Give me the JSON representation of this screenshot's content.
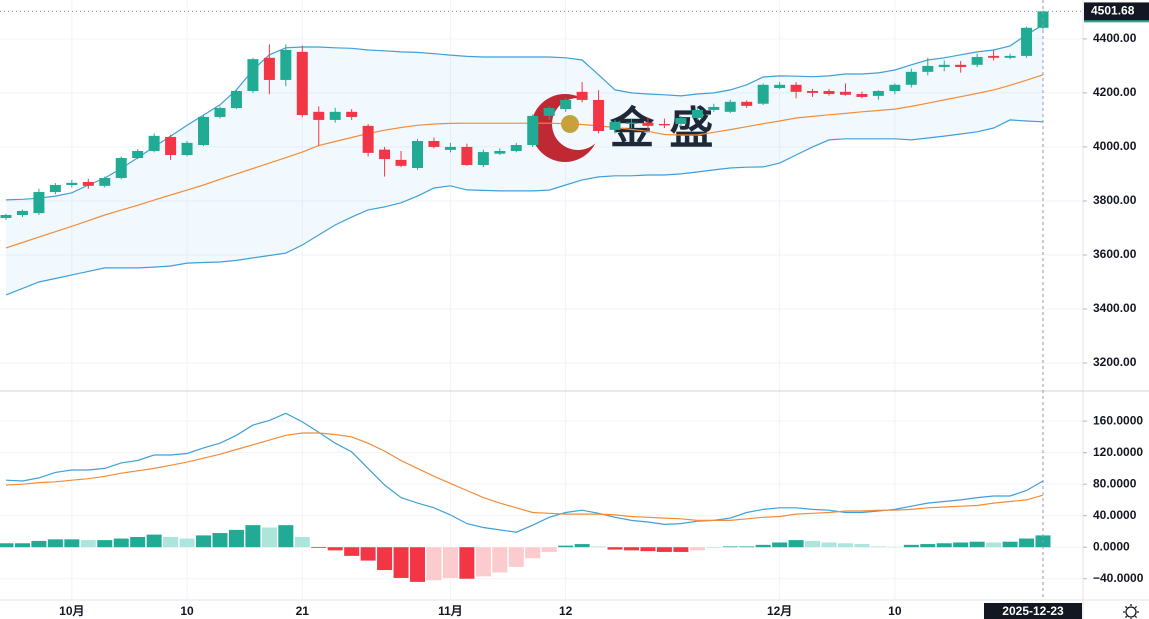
{
  "chart_data": [
    {
      "type": "candlestick",
      "categories": [
        null,
        null,
        null,
        null,
        "10月",
        null,
        null,
        null,
        null,
        null,
        null,
        "10",
        null,
        null,
        null,
        null,
        null,
        null,
        "21",
        null,
        null,
        null,
        null,
        null,
        null,
        null,
        null,
        "11月",
        null,
        null,
        null,
        null,
        null,
        null,
        "12",
        null,
        null,
        null,
        null,
        null,
        null,
        null,
        null,
        null,
        null,
        null,
        null,
        "12月",
        null,
        null,
        null,
        null,
        null,
        null,
        "10",
        null,
        null,
        null,
        null,
        null,
        null,
        null,
        null,
        "2025-12-23"
      ],
      "ohlc": {
        "open": [
          3737,
          3748,
          3755,
          3833,
          3859,
          3870,
          3856,
          3885,
          3959,
          3985,
          4037,
          3970,
          4007,
          4111,
          4144,
          4207,
          4330,
          4248,
          4352,
          4130,
          4100,
          4130,
          4078,
          3990,
          3952,
          3922,
          4022,
          3989,
          4000,
          3933,
          3975,
          3985,
          4007,
          4115,
          4140,
          4204,
          4174,
          4063,
          4085,
          4090,
          4085,
          4085,
          4107,
          4137,
          4130,
          4167,
          4160,
          4218,
          4230,
          4207,
          4207,
          4204,
          4196,
          4189,
          4207,
          4230,
          4278,
          4296,
          4304,
          4304,
          4337,
          4330,
          4337,
          4441
        ],
        "high": [
          3752,
          3768,
          3845,
          3866,
          3878,
          3882,
          3890,
          3965,
          3992,
          4050,
          4045,
          4022,
          4120,
          4150,
          4210,
          4330,
          4380,
          4380,
          4375,
          4150,
          4145,
          4140,
          4085,
          4000,
          3985,
          4030,
          4035,
          4015,
          4012,
          3990,
          3995,
          4015,
          4120,
          4150,
          4180,
          4240,
          4210,
          4100,
          4105,
          4110,
          4105,
          4115,
          4150,
          4160,
          4175,
          4172,
          4235,
          4240,
          4240,
          4215,
          4215,
          4235,
          4205,
          4210,
          4235,
          4290,
          4330,
          4320,
          4318,
          4345,
          4360,
          4345,
          4445,
          4505
        ],
        "low": [
          3730,
          3740,
          3748,
          3825,
          3850,
          3845,
          3850,
          3880,
          3955,
          3980,
          3952,
          3965,
          4003,
          4105,
          4140,
          4200,
          4195,
          4225,
          4110,
          4005,
          4090,
          4100,
          3965,
          3890,
          3925,
          3915,
          3995,
          3980,
          3930,
          3925,
          3970,
          3980,
          4000,
          4100,
          4130,
          4165,
          4050,
          4050,
          4070,
          4060,
          4070,
          4075,
          4100,
          4130,
          4125,
          4145,
          4155,
          4215,
          4180,
          4185,
          4190,
          4190,
          4180,
          4175,
          4195,
          4220,
          4265,
          4280,
          4275,
          4295,
          4320,
          4325,
          4330,
          4435
        ],
        "close": [
          3748,
          3763,
          3833,
          3859,
          3867,
          3856,
          3885,
          3959,
          3985,
          4041,
          3970,
          4015,
          4111,
          4144,
          4207,
          4325,
          4248,
          4359,
          4118,
          4100,
          4130,
          4111,
          3978,
          3955,
          3930,
          4022,
          4000,
          4000,
          3933,
          3981,
          3985,
          4007,
          4115,
          4144,
          4174,
          4174,
          4059,
          4093,
          4090,
          4078,
          4080,
          4107,
          4137,
          4148,
          4167,
          4152,
          4230,
          4230,
          4204,
          4200,
          4196,
          4193,
          4185,
          4207,
          4230,
          4278,
          4300,
          4304,
          4296,
          4333,
          4330,
          4337,
          4441,
          4501.68
        ]
      },
      "up_color": "#22ab94",
      "down_color": "#f23645",
      "series": [
        {
          "color": "#3fa0d8",
          "values": [
            3804,
            3806,
            3810,
            3818,
            3830,
            3859,
            3885,
            3920,
            3960,
            4000,
            4040,
            4080,
            4118,
            4156,
            4211,
            4285,
            4341,
            4367,
            4370,
            4370,
            4367,
            4365,
            4359,
            4356,
            4352,
            4350,
            4345,
            4340,
            4335,
            4333,
            4333,
            4333,
            4333,
            4333,
            4330,
            4322,
            4267,
            4211,
            4200,
            4196,
            4193,
            4189,
            4196,
            4200,
            4211,
            4230,
            4259,
            4263,
            4262,
            4260,
            4263,
            4270,
            4270,
            4274,
            4285,
            4304,
            4322,
            4330,
            4341,
            4352,
            4359,
            4374,
            4415,
            4452
          ]
        },
        {
          "color": "#f28c38",
          "values": [
            3626,
            3646,
            3666,
            3686,
            3706,
            3727,
            3748,
            3766,
            3784,
            3803,
            3822,
            3840,
            3859,
            3880,
            3900,
            3920,
            3940,
            3960,
            3981,
            4005,
            4020,
            4035,
            4050,
            4062,
            4072,
            4080,
            4085,
            4087,
            4088,
            4088,
            4088,
            4088,
            4088,
            4088,
            4086,
            4083,
            4078,
            4072,
            4065,
            4058,
            4046,
            4044,
            4044,
            4054,
            4064,
            4075,
            4086,
            4096,
            4107,
            4113,
            4119,
            4124,
            4130,
            4135,
            4140,
            4150,
            4162,
            4174,
            4186,
            4198,
            4211,
            4228,
            4247,
            4267
          ]
        },
        {
          "color": "#3fa0d8",
          "values": [
            3452,
            3476,
            3500,
            3513,
            3526,
            3539,
            3552,
            3552,
            3552,
            3555,
            3559,
            3570,
            3572,
            3574,
            3580,
            3589,
            3598,
            3607,
            3637,
            3674,
            3711,
            3740,
            3767,
            3778,
            3793,
            3818,
            3848,
            3856,
            3841,
            3839,
            3837,
            3837,
            3837,
            3840,
            3859,
            3878,
            3889,
            3893,
            3893,
            3896,
            3896,
            3900,
            3907,
            3915,
            3922,
            3925,
            3926,
            3940,
            3970,
            4000,
            4026,
            4030,
            4030,
            4030,
            4030,
            4026,
            4033,
            4040,
            4048,
            4056,
            4070,
            4100,
            4096,
            4093
          ]
        }
      ],
      "band_fill": "#2196f3",
      "ylim": [
        3100,
        4544
      ],
      "yticks": [
        {
          "value": 4400,
          "label": "4400.00"
        },
        {
          "value": 4200,
          "label": "4200.00"
        },
        {
          "value": 4000,
          "label": "4000.00"
        },
        {
          "value": 3800,
          "label": "3800.00"
        },
        {
          "value": 3600,
          "label": "3600.00"
        },
        {
          "value": 3400,
          "label": "3400.00"
        },
        {
          "value": 3200,
          "label": "3200.00"
        }
      ],
      "grid": true,
      "watermark": "金 盛"
    },
    {
      "type": "macd",
      "series": [
        {
          "color": "#3fa0d8",
          "values": [
            85,
            84,
            88,
            95,
            98,
            98,
            100,
            107,
            110,
            117,
            117,
            119,
            126,
            132,
            142,
            155,
            161,
            170,
            159,
            146,
            132,
            121,
            100,
            79,
            63,
            56,
            50,
            41,
            30,
            25,
            22,
            19,
            28,
            38,
            44,
            47,
            43,
            38,
            34,
            32,
            29,
            30,
            33,
            34,
            37,
            44,
            48,
            50,
            50,
            48,
            47,
            44,
            44,
            46,
            48,
            52,
            56,
            58,
            60,
            63,
            65,
            65,
            72,
            84
          ]
        },
        {
          "color": "#f28c38",
          "values": [
            79,
            80,
            82,
            83,
            85,
            87,
            90,
            94,
            97,
            100,
            104,
            108,
            113,
            118,
            124,
            130,
            136,
            142,
            145,
            145,
            143,
            140,
            132,
            122,
            110,
            100,
            90,
            81,
            72,
            63,
            56,
            50,
            44,
            43,
            42,
            42,
            42,
            41,
            39,
            38,
            37,
            36,
            34,
            34,
            34,
            36,
            38,
            39,
            42,
            43,
            44,
            46,
            46,
            47,
            47,
            48,
            50,
            51,
            52,
            53,
            56,
            58,
            60,
            66
          ]
        }
      ],
      "histogram": {
        "values": [
          5,
          5,
          8,
          10,
          10,
          9,
          9,
          11,
          13,
          16,
          13,
          11,
          15,
          18,
          22,
          28,
          25,
          28,
          13,
          -1,
          -4,
          -11,
          -17,
          -29,
          -39,
          -44,
          -42,
          -39,
          -40,
          -37,
          -32,
          -25,
          -14,
          -6,
          2,
          4,
          1,
          -3,
          -4,
          -5,
          -6,
          -6,
          -4,
          -1,
          1,
          1,
          3,
          6,
          9,
          8,
          6,
          5,
          4,
          1,
          0.5,
          3,
          4,
          5,
          6,
          7,
          6,
          7,
          11,
          15
        ],
        "colors": {
          "rise_pos": "#22ab94",
          "fall_pos": "#ace5dc",
          "fall_neg": "#f23645",
          "rise_neg": "#fccbcd"
        }
      },
      "ylim": [
        -67,
        197
      ],
      "yticks": [
        {
          "value": 160,
          "label": "160.0000"
        },
        {
          "value": 120,
          "label": "120.0000"
        },
        {
          "value": 80,
          "label": "80.0000"
        },
        {
          "value": 40,
          "label": "40.0000"
        },
        {
          "value": 0,
          "label": "0.0000"
        },
        {
          "value": -40,
          "label": "−40.0000"
        }
      ],
      "grid": true
    }
  ]
}
